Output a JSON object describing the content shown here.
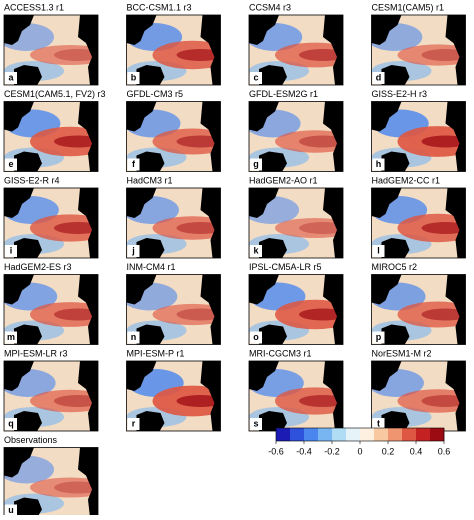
{
  "panels": [
    {
      "title": "ACCESS1.3 r1",
      "letter": "a"
    },
    {
      "title": "BCC-CSM1.1 r3",
      "letter": "b"
    },
    {
      "title": "CCSM4 r3",
      "letter": "c"
    },
    {
      "title": "CESM1(CAM5) r1",
      "letter": "d"
    },
    {
      "title": "CESM1(CAM5.1, FV2) r3",
      "letter": "e"
    },
    {
      "title": "GFDL-CM3 r5",
      "letter": "f"
    },
    {
      "title": "GFDL-ESM2G r1",
      "letter": "g"
    },
    {
      "title": "GISS-E2-H r3",
      "letter": "h"
    },
    {
      "title": "GISS-E2-R r4",
      "letter": "i"
    },
    {
      "title": "HadCM3 r1",
      "letter": "j"
    },
    {
      "title": "HadGEM2-AO r1",
      "letter": "k"
    },
    {
      "title": "HadGEM2-CC r1",
      "letter": "l"
    },
    {
      "title": "HadGEM2-ES r3",
      "letter": "m"
    },
    {
      "title": "INM-CM4 r1",
      "letter": "n"
    },
    {
      "title": "IPSL-CM5A-LR r5",
      "letter": "o"
    },
    {
      "title": "MIROC5 r2",
      "letter": "p"
    },
    {
      "title": "MPI-ESM-LR r3",
      "letter": "q"
    },
    {
      "title": "MPI-ESM-P r1",
      "letter": "r"
    },
    {
      "title": "MRI-CGCM3 r1",
      "letter": "s"
    },
    {
      "title": "NorESM1-M r2",
      "letter": "t"
    },
    {
      "title": "Observations",
      "letter": "u"
    }
  ],
  "colorbar": {
    "range": [
      -0.6,
      0.6
    ],
    "ticks": [
      -0.6,
      -0.4,
      -0.2,
      0,
      0.2,
      0.4,
      0.6
    ],
    "colors": [
      "#1c1cb4",
      "#2f52dc",
      "#4a86ee",
      "#78b6f2",
      "#b0dcf4",
      "#e6f4fa",
      "#fdf0e0",
      "#f8c8a0",
      "#ef9570",
      "#de5742",
      "#c42222",
      "#9c0a12"
    ]
  }
}
